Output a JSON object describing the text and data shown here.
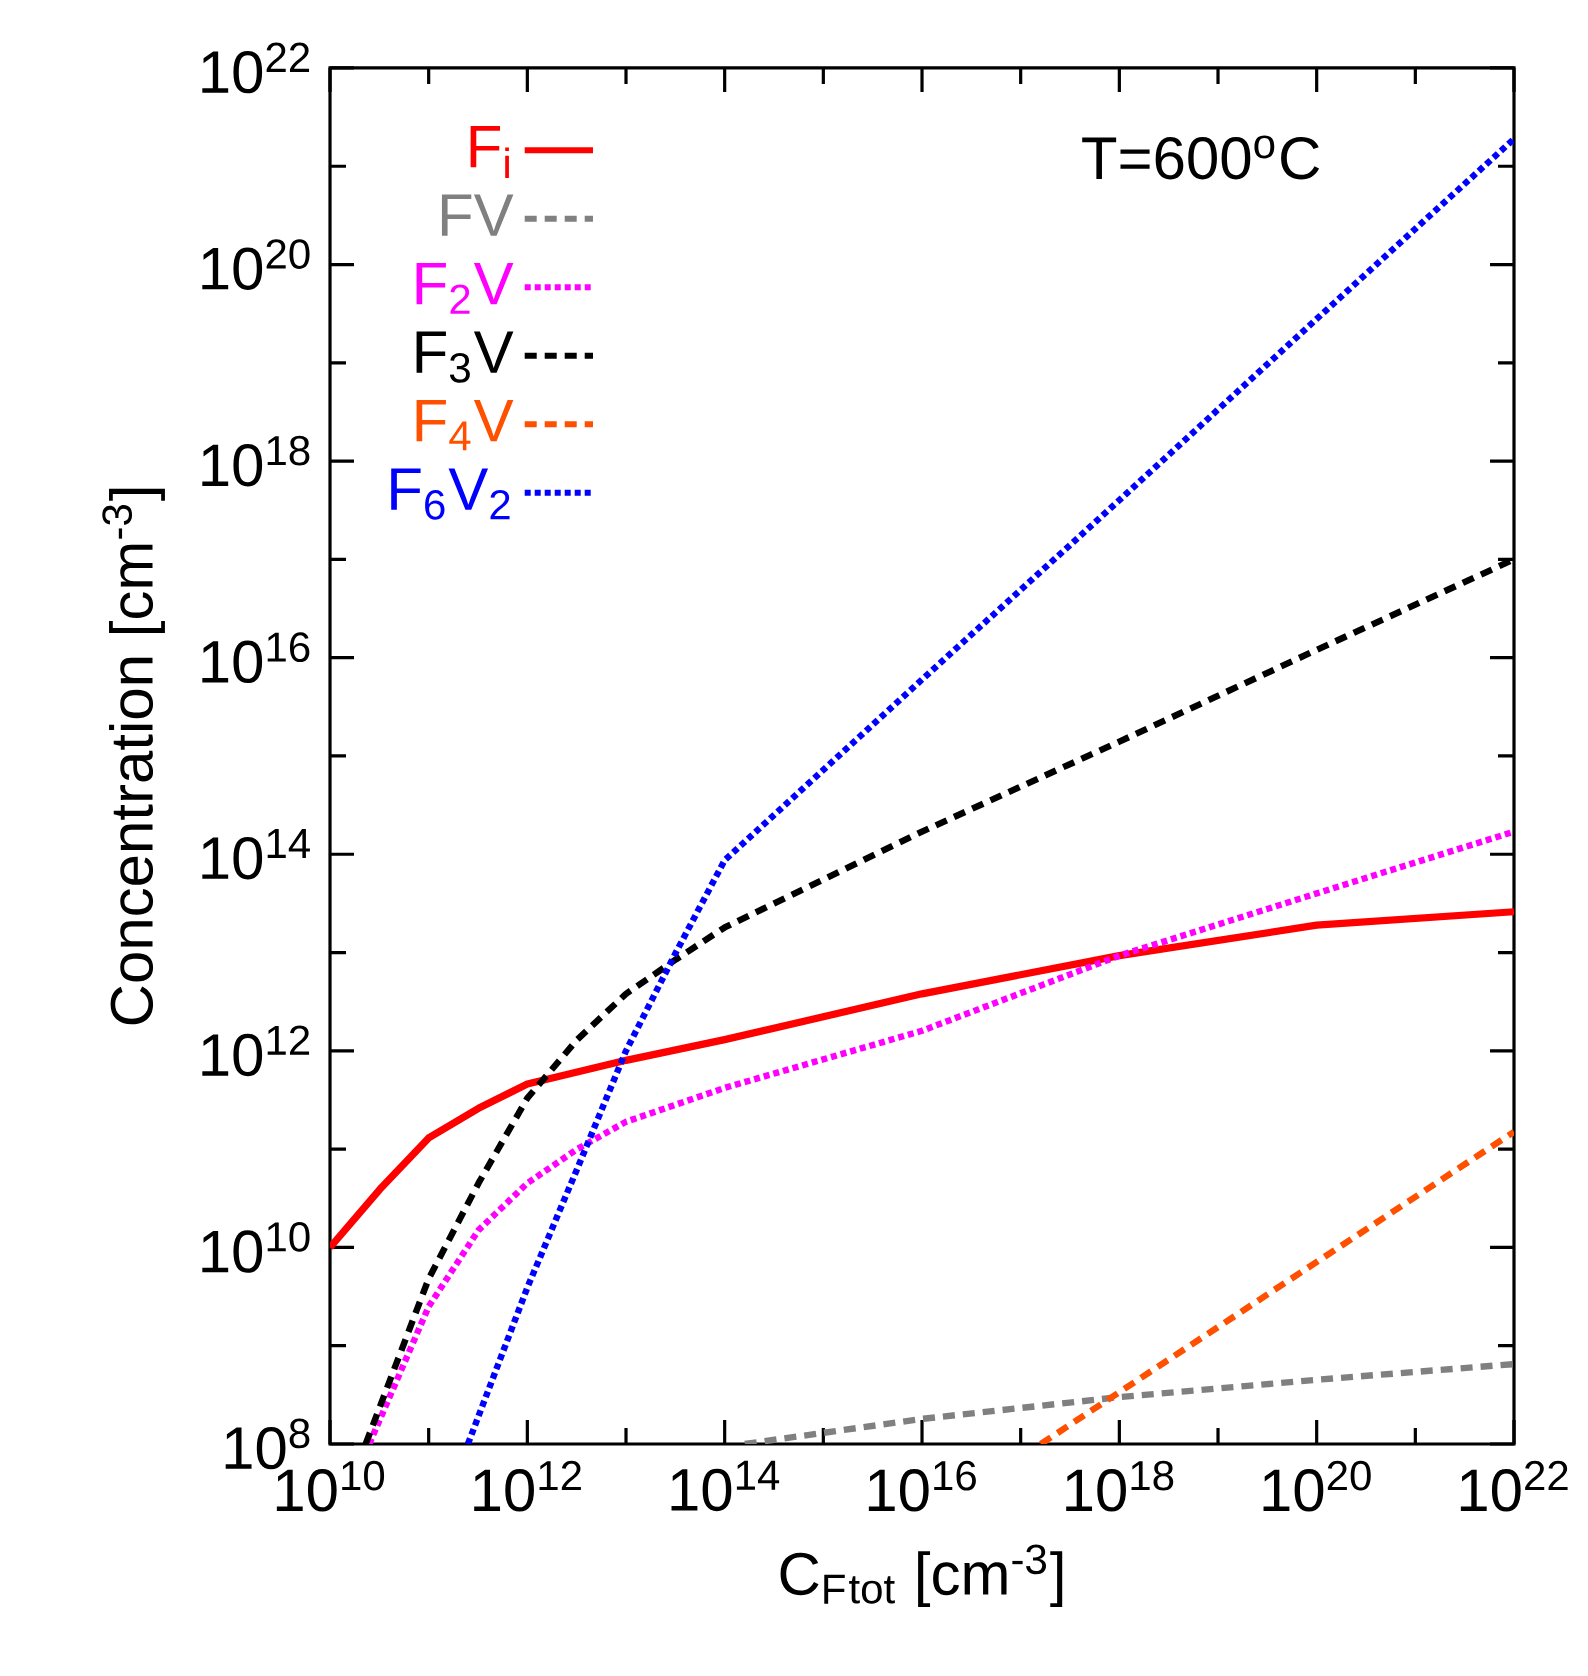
{
  "chart_data": {
    "type": "line",
    "xlabel": "C$_{F}$$_{tot}$ [cm$^{-3}$]",
    "ylabel": "Concentration [cm$^{-3}$]",
    "annotations": [
      "T=600$^{o}$C"
    ],
    "log": "xy",
    "xlim": [
      10000000000.0,
      1e+22
    ],
    "ylim": [
      100000000.0,
      1e+22
    ],
    "xticks": [
      {
        "value": 10000000000.0,
        "label": "10$^{10}$"
      },
      {
        "value": 1000000000000.0,
        "label": "10$^{12}$"
      },
      {
        "value": 100000000000000.0,
        "label": "10$^{14}$"
      },
      {
        "value": 1e+16,
        "label": "10$^{16}$"
      },
      {
        "value": 1e+18,
        "label": "10$^{18}$"
      },
      {
        "value": 1e+20,
        "label": "10$^{20}$"
      },
      {
        "value": 1e+22,
        "label": "10$^{22}$"
      }
    ],
    "yticks": [
      {
        "value": 100000000.0,
        "label": "10$^{8}$"
      },
      {
        "value": 10000000000.0,
        "label": "10$^{10}$"
      },
      {
        "value": 1000000000000.0,
        "label": "10$^{12}$"
      },
      {
        "value": 100000000000000.0,
        "label": "10$^{14}$"
      },
      {
        "value": 1e+16,
        "label": "10$^{16}$"
      },
      {
        "value": 1e+18,
        "label": "10$^{18}$"
      },
      {
        "value": 1e+20,
        "label": "10$^{20}$"
      },
      {
        "value": 1e+22,
        "label": "10$^{22}$"
      }
    ],
    "legend": "top left",
    "series": [
      {
        "name": "F$_{i}$",
        "color": "#ff0000",
        "line_style": "solid",
        "x": [
          10000000000.0,
          32000000000.0,
          100000000000.0,
          320000000000.0,
          1000000000000.0,
          10000000000000.0,
          100000000000000.0,
          1e+16,
          1e+18,
          1e+20,
          1e+22
        ],
        "values": [
          10000000000.0,
          39000000000.0,
          130000000000.0,
          260000000000.0,
          460000000000.0,
          800000000000.0,
          1300000000000.0,
          3800000000000.0,
          9300000000000.0,
          19000000000000.0,
          26000000000000.0
        ]
      },
      {
        "name": "FV",
        "color": "#808080",
        "line_style": "dashed",
        "x": [
          160000000000000.0,
          1e+16,
          1e+18,
          1e+20,
          1e+22
        ],
        "values": [
          100000000.0,
          180000000.0,
          300000000.0,
          450000000.0,
          650000000.0
        ]
      },
      {
        "name": "F$_{2}$V",
        "color": "#ff00ff",
        "line_style": "dotted",
        "x": [
          25000000000.0,
          100000000000.0,
          320000000000.0,
          1000000000000.0,
          3200000000000.0,
          10000000000000.0,
          100000000000000.0,
          1e+16,
          1e+18,
          1e+20,
          1e+22
        ],
        "values": [
          100000000.0,
          2500000000.0,
          15000000000.0,
          45000000000.0,
          100000000000.0,
          190000000000.0,
          420000000000.0,
          1600000000000.0,
          9300000000000.0,
          40000000000000.0,
          170000000000000.0
        ]
      },
      {
        "name": "F$_{3}$V",
        "color": "#000000",
        "line_style": "dashed",
        "x": [
          23000000000.0,
          100000000000.0,
          320000000000.0,
          1000000000000.0,
          3200000000000.0,
          10000000000000.0,
          32000000000000.0,
          100000000000000.0,
          1e+16,
          1e+18,
          1e+20,
          1e+22
        ],
        "values": [
          100000000.0,
          4800000000.0,
          45000000000.0,
          330000000000.0,
          1300000000000.0,
          3800000000000.0,
          8500000000000.0,
          18000000000000.0,
          170000000000000.0,
          1400000000000000.0,
          1.2e+16,
          1e+17
        ]
      },
      {
        "name": "F$_{4}$V",
        "color": "#ff5000",
        "line_style": "dashed",
        "x": [
          1.6e+17,
          1e+22
        ],
        "values": [
          100000000.0,
          150000000000.0
        ]
      },
      {
        "name": "F$_{6}$V$_{2}$",
        "color": "#0000ff",
        "line_style": "dotted",
        "x": [
          250000000000.0,
          1000000000000.0,
          3200000000000.0,
          10000000000000.0,
          32000000000000.0,
          100000000000000.0,
          1e+16,
          1e+18,
          1e+20,
          1e+22
        ],
        "values": [
          100000000.0,
          3900000000.0,
          63000000000.0,
          1000000000000.0,
          10000000000000.0,
          87000000000000.0,
          6000000000000000.0,
          4e+17,
          2.8e+19,
          1.9e+21
        ]
      }
    ]
  }
}
